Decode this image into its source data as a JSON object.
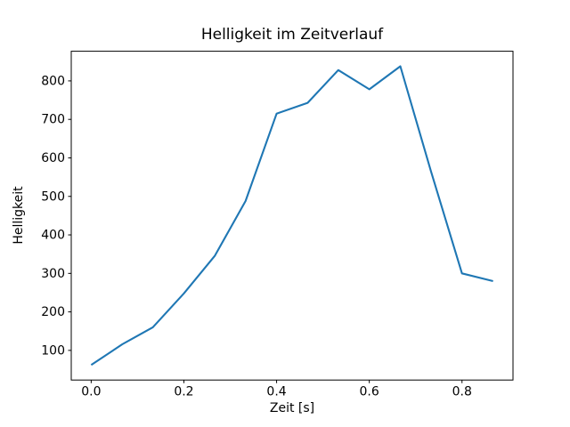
{
  "figure": {
    "background": "#ffffff",
    "spine_color": "#000000",
    "text_color": "#000000"
  },
  "chart_data": {
    "type": "line",
    "title": "Helligkeit im Zeitverlauf",
    "xlabel": "Zeit [s]",
    "ylabel": "Helligkeit",
    "x": [
      0.0,
      0.067,
      0.133,
      0.2,
      0.267,
      0.333,
      0.4,
      0.467,
      0.533,
      0.6,
      0.667,
      0.733,
      0.8,
      0.867
    ],
    "y": [
      62,
      116,
      160,
      248,
      346,
      488,
      715,
      743,
      828,
      778,
      838,
      565,
      300,
      280
    ],
    "xlim": [
      -0.043,
      0.91
    ],
    "ylim": [
      23,
      877
    ],
    "xticks": [
      0.0,
      0.2,
      0.4,
      0.6,
      0.8
    ],
    "xtick_labels": [
      "0.0",
      "0.2",
      "0.4",
      "0.6",
      "0.8"
    ],
    "yticks": [
      100,
      200,
      300,
      400,
      500,
      600,
      700,
      800
    ],
    "ytick_labels": [
      "100",
      "200",
      "300",
      "400",
      "500",
      "600",
      "700",
      "800"
    ],
    "line_color": "#1f77b4",
    "grid": false,
    "legend_position": "none"
  }
}
